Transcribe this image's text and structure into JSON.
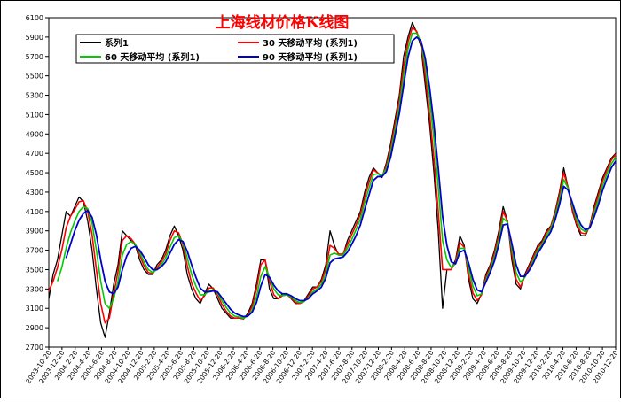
{
  "chart_data": {
    "type": "line",
    "title": "上海线材价格K线图",
    "ylim": [
      2700,
      6100
    ],
    "yticks": [
      2700,
      2900,
      3100,
      3300,
      3500,
      3700,
      3900,
      4100,
      4300,
      4500,
      4700,
      4900,
      5100,
      5300,
      5500,
      5700,
      5900,
      6100
    ],
    "xticks": [
      "2003-10-20",
      "2003-12-20",
      "2004-2-20",
      "2004-4-20",
      "2004-6-20",
      "2004-8-20",
      "2004-10-20",
      "2004-12-20",
      "2005-2-20",
      "2005-4-20",
      "2005-6-20",
      "2005-8-20",
      "2005-10-20",
      "2005-12-20",
      "2006-2-20",
      "2006-4-20",
      "2006-6-20",
      "2006-8-20",
      "2006-10-20",
      "2006-12-20",
      "2007-2-20",
      "2007-4-20",
      "2007-6-20",
      "2007-8-20",
      "2007-10-20",
      "2007-12-20",
      "2008-2-20",
      "2008-4-20",
      "2008-6-20",
      "2008-8-20",
      "2008-10-20",
      "2008-12-20",
      "2009-2-20",
      "2009-4-20",
      "2009-6-20",
      "2009-8-20",
      "2009-10-20",
      "2009-12-20",
      "2010-2-20",
      "2010-4-20",
      "2010-6-20",
      "2010-8-20",
      "2010-10-20",
      "2010-12-20"
    ],
    "grid": false,
    "legend_position": "top-left",
    "legend": [
      "系列1",
      "30 天移动平均 (系列1)",
      "60 天移动平均 (系列1)",
      "90 天移动平均 (系列1)"
    ],
    "series": [
      {
        "name": "系列1",
        "color": "#000000",
        "values": [
          3200,
          3450,
          3600,
          3850,
          4100,
          4050,
          4150,
          4250,
          4200,
          4000,
          3700,
          3300,
          2950,
          2800,
          3050,
          3350,
          3550,
          3900,
          3850,
          3800,
          3750,
          3600,
          3500,
          3450,
          3450,
          3550,
          3600,
          3700,
          3850,
          3950,
          3850,
          3700,
          3450,
          3300,
          3200,
          3150,
          3250,
          3350,
          3300,
          3200,
          3100,
          3050,
          3000,
          3000,
          3000,
          2990,
          3050,
          3150,
          3350,
          3600,
          3600,
          3300,
          3200,
          3200,
          3250,
          3250,
          3200,
          3150,
          3150,
          3180,
          3250,
          3320,
          3320,
          3400,
          3550,
          3900,
          3750,
          3650,
          3650,
          3800,
          3900,
          4000,
          4100,
          4300,
          4450,
          4550,
          4500,
          4450,
          4600,
          4800,
          5050,
          5300,
          5700,
          5900,
          6050,
          5950,
          5800,
          5400,
          5000,
          4500,
          3900,
          3100,
          3500,
          3500,
          3600,
          3850,
          3750,
          3400,
          3200,
          3150,
          3250,
          3450,
          3550,
          3700,
          3900,
          4150,
          4000,
          3600,
          3350,
          3300,
          3450,
          3550,
          3650,
          3750,
          3800,
          3900,
          3950,
          4100,
          4300,
          4550,
          4350,
          4100,
          3950,
          3850,
          3850,
          3950,
          4150,
          4300,
          4450,
          4550,
          4650,
          4700
        ]
      },
      {
        "name": "30 天移动平均 (系列1)",
        "color": "#ff0000",
        "values": [
          3280,
          3380,
          3520,
          3700,
          3930,
          4050,
          4120,
          4200,
          4210,
          4100,
          3860,
          3500,
          3150,
          2950,
          3000,
          3250,
          3480,
          3800,
          3850,
          3820,
          3760,
          3650,
          3540,
          3470,
          3460,
          3520,
          3580,
          3660,
          3800,
          3900,
          3880,
          3760,
          3540,
          3360,
          3260,
          3180,
          3230,
          3310,
          3310,
          3240,
          3140,
          3070,
          3020,
          3000,
          3000,
          2995,
          3030,
          3120,
          3300,
          3550,
          3600,
          3380,
          3240,
          3200,
          3230,
          3240,
          3210,
          3160,
          3150,
          3170,
          3230,
          3300,
          3320,
          3380,
          3500,
          3750,
          3720,
          3660,
          3660,
          3760,
          3860,
          3960,
          4070,
          4250,
          4400,
          4530,
          4500,
          4460,
          4570,
          4760,
          5000,
          5250,
          5600,
          5850,
          6000,
          5960,
          5830,
          5500,
          5100,
          4650,
          4100,
          3500,
          3500,
          3500,
          3580,
          3780,
          3730,
          3450,
          3260,
          3180,
          3240,
          3420,
          3530,
          3670,
          3860,
          4100,
          4000,
          3660,
          3400,
          3320,
          3430,
          3530,
          3630,
          3730,
          3780,
          3880,
          3940,
          4080,
          4270,
          4500,
          4350,
          4120,
          3970,
          3880,
          3870,
          3940,
          4120,
          4270,
          4420,
          4530,
          4630,
          4690
        ]
      },
      {
        "name": "60 天移动平均 (系列1)",
        "color": "#00cc00",
        "values": [
          null,
          null,
          3380,
          3520,
          3720,
          3880,
          4000,
          4100,
          4150,
          4130,
          3980,
          3700,
          3380,
          3150,
          3100,
          3200,
          3380,
          3650,
          3760,
          3790,
          3760,
          3680,
          3580,
          3500,
          3470,
          3500,
          3550,
          3620,
          3730,
          3830,
          3850,
          3780,
          3620,
          3450,
          3330,
          3240,
          3240,
          3280,
          3290,
          3260,
          3180,
          3110,
          3050,
          3020,
          3010,
          3000,
          3020,
          3080,
          3220,
          3430,
          3530,
          3420,
          3300,
          3240,
          3230,
          3240,
          3220,
          3180,
          3160,
          3170,
          3210,
          3270,
          3300,
          3350,
          3450,
          3650,
          3670,
          3650,
          3650,
          3720,
          3810,
          3910,
          4020,
          4190,
          4340,
          4480,
          4490,
          4470,
          4540,
          4710,
          4940,
          5180,
          5500,
          5780,
          5940,
          5940,
          5850,
          5600,
          5250,
          4850,
          4350,
          3800,
          3600,
          3520,
          3560,
          3720,
          3720,
          3520,
          3330,
          3230,
          3250,
          3390,
          3500,
          3630,
          3810,
          4030,
          3990,
          3720,
          3470,
          3370,
          3420,
          3500,
          3600,
          3700,
          3760,
          3850,
          3920,
          4050,
          4220,
          4430,
          4340,
          4160,
          4010,
          3920,
          3890,
          3930,
          4080,
          4220,
          4370,
          4490,
          4590,
          4660
        ]
      },
      {
        "name": "90 天移动平均 (系列1)",
        "color": "#0000cc",
        "values": [
          null,
          null,
          null,
          null,
          3620,
          3760,
          3900,
          4010,
          4080,
          4110,
          4040,
          3860,
          3600,
          3380,
          3270,
          3250,
          3320,
          3500,
          3640,
          3720,
          3740,
          3700,
          3630,
          3550,
          3500,
          3500,
          3530,
          3580,
          3670,
          3760,
          3810,
          3790,
          3690,
          3550,
          3420,
          3310,
          3270,
          3270,
          3280,
          3270,
          3210,
          3150,
          3090,
          3050,
          3030,
          3015,
          3020,
          3060,
          3160,
          3330,
          3450,
          3420,
          3340,
          3280,
          3250,
          3250,
          3230,
          3200,
          3180,
          3180,
          3200,
          3250,
          3280,
          3320,
          3410,
          3570,
          3610,
          3620,
          3630,
          3680,
          3760,
          3850,
          3960,
          4120,
          4270,
          4420,
          4460,
          4460,
          4510,
          4660,
          4880,
          5110,
          5400,
          5690,
          5860,
          5900,
          5860,
          5680,
          5380,
          5000,
          4550,
          4050,
          3750,
          3580,
          3560,
          3680,
          3700,
          3570,
          3400,
          3290,
          3270,
          3370,
          3470,
          3590,
          3760,
          3960,
          3970,
          3770,
          3550,
          3430,
          3430,
          3490,
          3570,
          3670,
          3740,
          3820,
          3890,
          4010,
          4170,
          4360,
          4320,
          4190,
          4050,
          3960,
          3910,
          3930,
          4040,
          4170,
          4320,
          4440,
          4550,
          4620
        ]
      }
    ]
  }
}
